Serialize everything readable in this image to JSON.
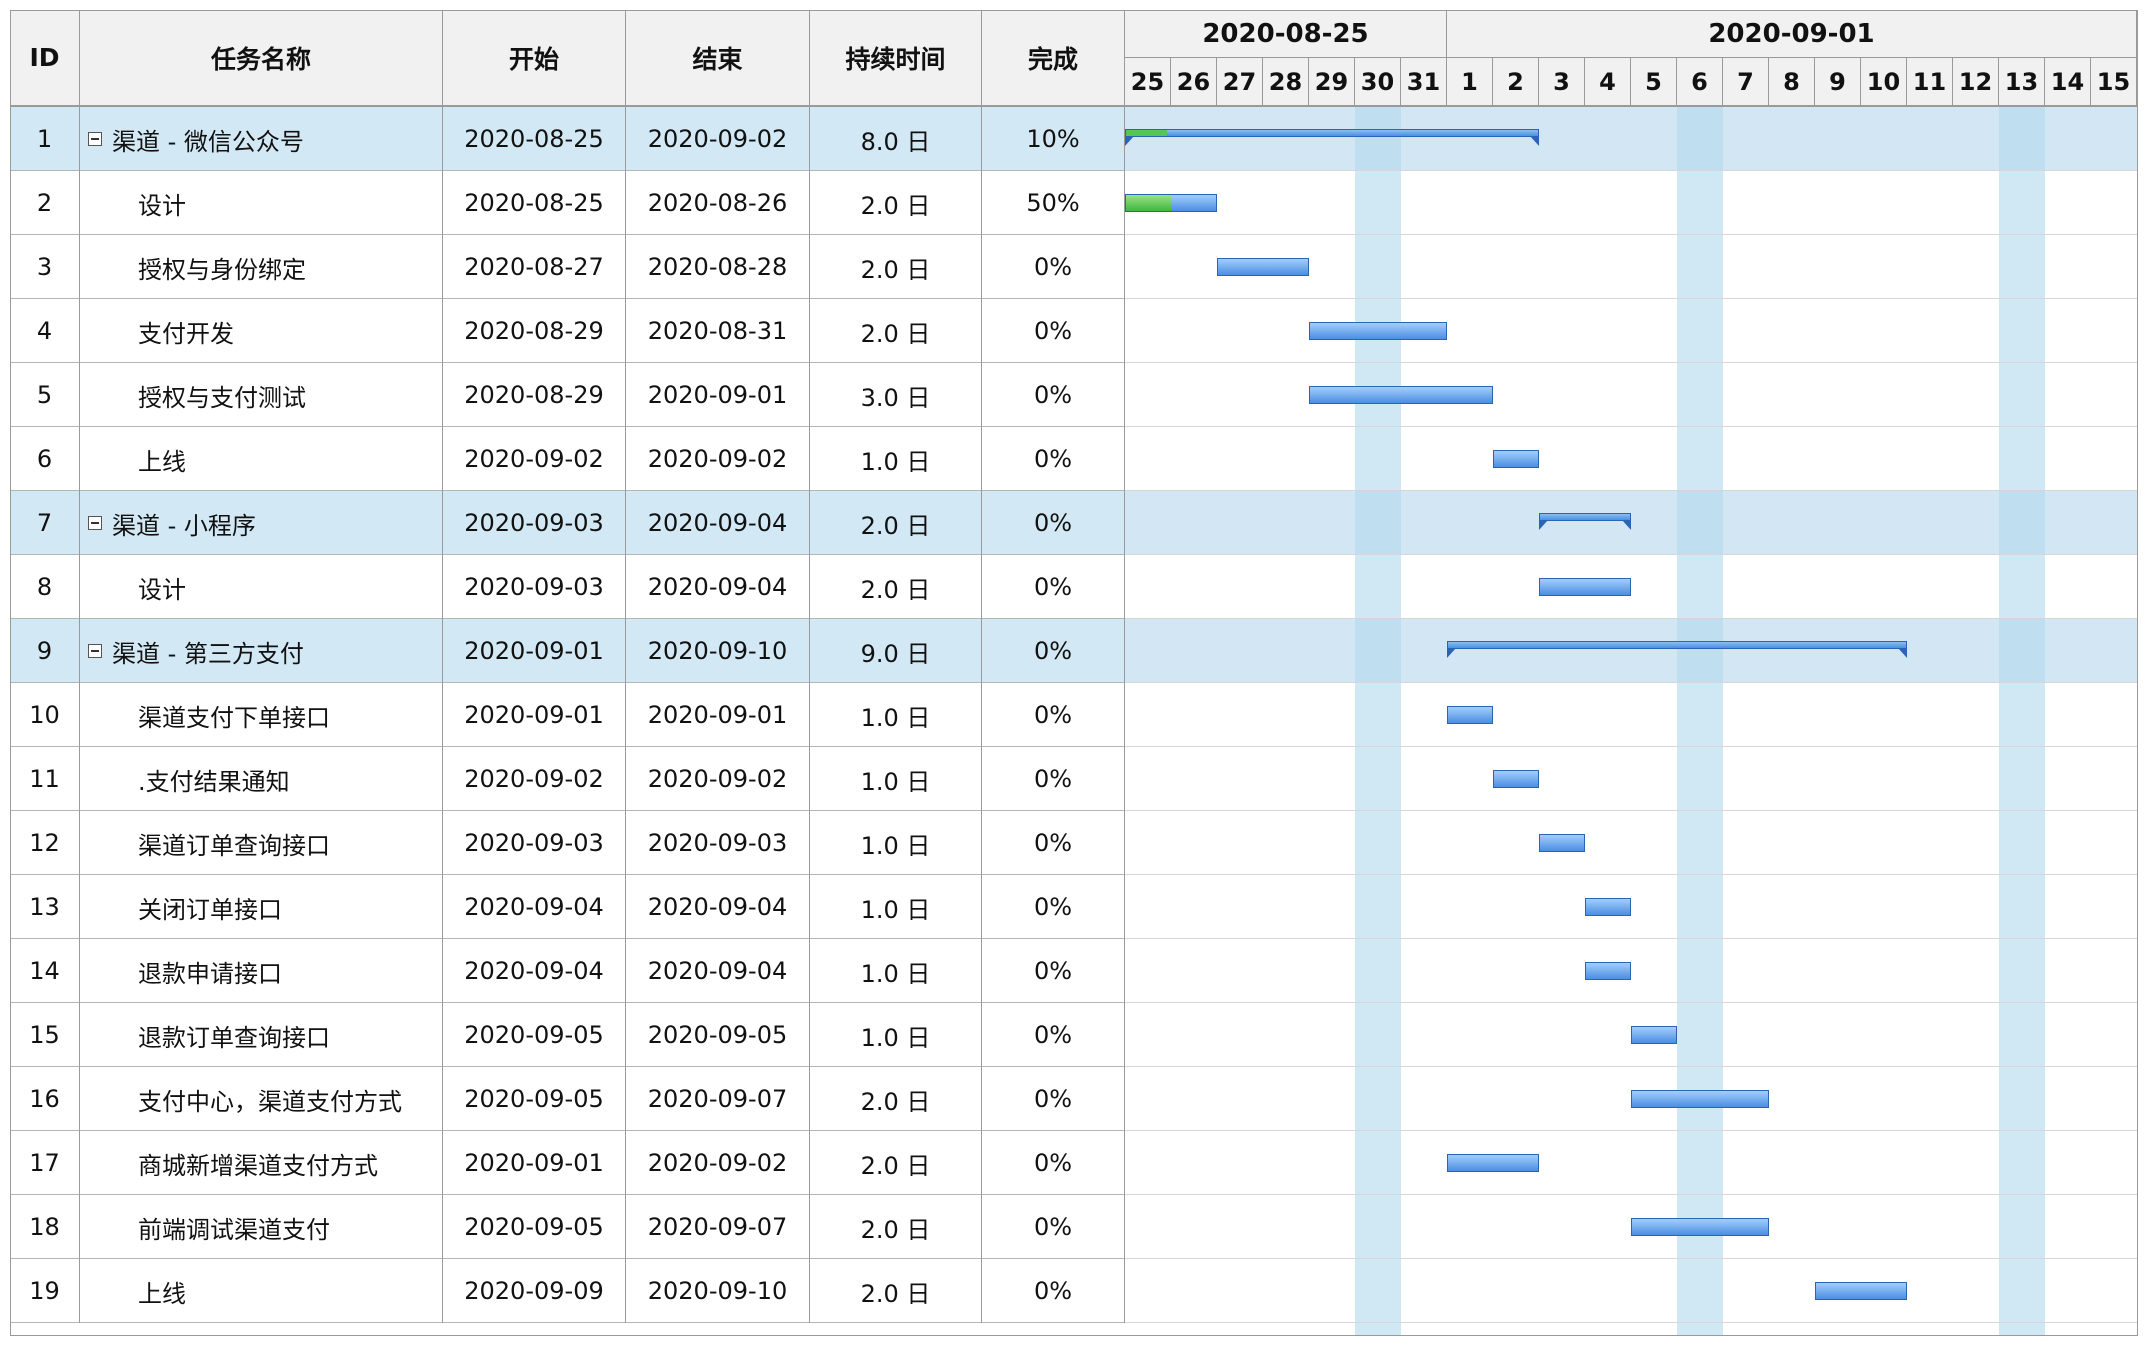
{
  "columns": {
    "id": "ID",
    "name": "任务名称",
    "start": "开始",
    "end": "结束",
    "duration": "持续时间",
    "complete": "完成"
  },
  "timeline": {
    "weeks": [
      "2020-08-25",
      "2020-09-01"
    ],
    "days": [
      "25",
      "26",
      "27",
      "28",
      "29",
      "30",
      "31",
      "1",
      "2",
      "3",
      "4",
      "5",
      "6",
      "7",
      "8",
      "9",
      "10",
      "11",
      "12",
      "13",
      "14",
      "15"
    ],
    "weekend_day_indices": [
      5,
      12,
      19
    ]
  },
  "colors": {
    "bar": "#4a8fe3",
    "progress": "#3fb540",
    "parent_row": "#d2e9f5",
    "weekend": "#cfe8f4"
  },
  "tasks": [
    {
      "id": "1",
      "name": "渠道 - 微信公众号",
      "start": "2020-08-25",
      "end": "2020-09-02",
      "duration": "8.0 日",
      "complete": "10%",
      "parent": true,
      "s": 0,
      "e": 9,
      "p": 0.1
    },
    {
      "id": "2",
      "name": "设计",
      "start": "2020-08-25",
      "end": "2020-08-26",
      "duration": "2.0 日",
      "complete": "50%",
      "parent": false,
      "s": 0,
      "e": 2,
      "p": 0.5
    },
    {
      "id": "3",
      "name": "授权与身份绑定",
      "start": "2020-08-27",
      "end": "2020-08-28",
      "duration": "2.0 日",
      "complete": "0%",
      "parent": false,
      "s": 2,
      "e": 4,
      "p": 0
    },
    {
      "id": "4",
      "name": "支付开发",
      "start": "2020-08-29",
      "end": "2020-08-31",
      "duration": "2.0 日",
      "complete": "0%",
      "parent": false,
      "s": 4,
      "e": 7,
      "p": 0
    },
    {
      "id": "5",
      "name": "授权与支付测试",
      "start": "2020-08-29",
      "end": "2020-09-01",
      "duration": "3.0 日",
      "complete": "0%",
      "parent": false,
      "s": 4,
      "e": 8,
      "p": 0
    },
    {
      "id": "6",
      "name": "上线",
      "start": "2020-09-02",
      "end": "2020-09-02",
      "duration": "1.0 日",
      "complete": "0%",
      "parent": false,
      "s": 8,
      "e": 9,
      "p": 0
    },
    {
      "id": "7",
      "name": "渠道 - 小程序",
      "start": "2020-09-03",
      "end": "2020-09-04",
      "duration": "2.0 日",
      "complete": "0%",
      "parent": true,
      "s": 9,
      "e": 11,
      "p": 0
    },
    {
      "id": "8",
      "name": "设计",
      "start": "2020-09-03",
      "end": "2020-09-04",
      "duration": "2.0 日",
      "complete": "0%",
      "parent": false,
      "s": 9,
      "e": 11,
      "p": 0
    },
    {
      "id": "9",
      "name": "渠道 - 第三方支付",
      "start": "2020-09-01",
      "end": "2020-09-10",
      "duration": "9.0 日",
      "complete": "0%",
      "parent": true,
      "s": 7,
      "e": 17,
      "p": 0
    },
    {
      "id": "10",
      "name": "渠道支付下单接口",
      "start": "2020-09-01",
      "end": "2020-09-01",
      "duration": "1.0 日",
      "complete": "0%",
      "parent": false,
      "s": 7,
      "e": 8,
      "p": 0
    },
    {
      "id": "11",
      "name": ".支付结果通知",
      "start": "2020-09-02",
      "end": "2020-09-02",
      "duration": "1.0 日",
      "complete": "0%",
      "parent": false,
      "s": 8,
      "e": 9,
      "p": 0
    },
    {
      "id": "12",
      "name": "渠道订单查询接口",
      "start": "2020-09-03",
      "end": "2020-09-03",
      "duration": "1.0 日",
      "complete": "0%",
      "parent": false,
      "s": 9,
      "e": 10,
      "p": 0
    },
    {
      "id": "13",
      "name": "关闭订单接口",
      "start": "2020-09-04",
      "end": "2020-09-04",
      "duration": "1.0 日",
      "complete": "0%",
      "parent": false,
      "s": 10,
      "e": 11,
      "p": 0
    },
    {
      "id": "14",
      "name": "退款申请接口",
      "start": "2020-09-04",
      "end": "2020-09-04",
      "duration": "1.0 日",
      "complete": "0%",
      "parent": false,
      "s": 10,
      "e": 11,
      "p": 0
    },
    {
      "id": "15",
      "name": "退款订单查询接口",
      "start": "2020-09-05",
      "end": "2020-09-05",
      "duration": "1.0 日",
      "complete": "0%",
      "parent": false,
      "s": 11,
      "e": 12,
      "p": 0
    },
    {
      "id": "16",
      "name": "支付中心，渠道支付方式",
      "start": "2020-09-05",
      "end": "2020-09-07",
      "duration": "2.0 日",
      "complete": "0%",
      "parent": false,
      "s": 11,
      "e": 14,
      "p": 0
    },
    {
      "id": "17",
      "name": "商城新增渠道支付方式",
      "start": "2020-09-01",
      "end": "2020-09-02",
      "duration": "2.0 日",
      "complete": "0%",
      "parent": false,
      "s": 7,
      "e": 9,
      "p": 0
    },
    {
      "id": "18",
      "name": "前端调试渠道支付",
      "start": "2020-09-05",
      "end": "2020-09-07",
      "duration": "2.0 日",
      "complete": "0%",
      "parent": false,
      "s": 11,
      "e": 14,
      "p": 0
    },
    {
      "id": "19",
      "name": "上线",
      "start": "2020-09-09",
      "end": "2020-09-10",
      "duration": "2.0 日",
      "complete": "0%",
      "parent": false,
      "s": 15,
      "e": 17,
      "p": 0
    }
  ]
}
